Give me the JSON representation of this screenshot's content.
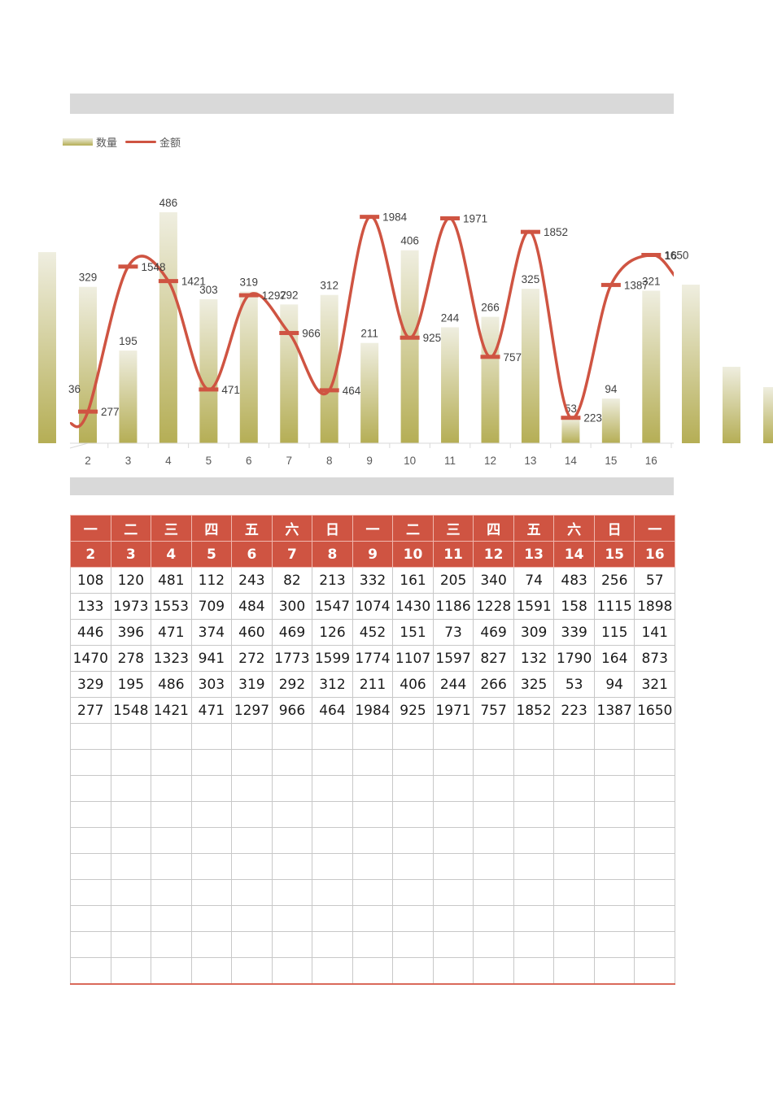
{
  "legend": {
    "items": [
      {
        "label": "数量",
        "type": "bar",
        "color": "#b5ae55"
      },
      {
        "label": "金额",
        "type": "line",
        "color": "#cf5442"
      }
    ]
  },
  "chart_data": {
    "type": "bar+line",
    "title": "",
    "categories": [
      "2",
      "3",
      "4",
      "5",
      "6",
      "7",
      "8",
      "9",
      "10",
      "11",
      "12",
      "13",
      "14",
      "15",
      "16"
    ],
    "series": [
      {
        "name": "数量",
        "type": "bar",
        "values": [
          329,
          195,
          486,
          303,
          319,
          292,
          312,
          211,
          406,
          244,
          266,
          325,
          53,
          94,
          321
        ]
      },
      {
        "name": "金额",
        "type": "line",
        "smooth": true,
        "values": [
          277,
          1548,
          1421,
          471,
          1297,
          966,
          464,
          1984,
          925,
          1971,
          757,
          1852,
          223,
          1387,
          1650
        ]
      }
    ],
    "partial_labels_visible": {
      "left_edge": "36",
      "right_edge": "16"
    },
    "xlabel": "",
    "ylabel": "",
    "grid": false,
    "legend_position": "top-left",
    "colors": {
      "bar_top": "#ecebd9",
      "bar_bottom": "#b5ae55",
      "line": "#cf5442",
      "axis": "#d9d9d9",
      "label": "#404040"
    }
  },
  "table": {
    "weekday_row": [
      "一",
      "二",
      "三",
      "四",
      "五",
      "六",
      "日",
      "一",
      "二",
      "三",
      "四",
      "五",
      "六",
      "日",
      "一"
    ],
    "day_row": [
      "2",
      "3",
      "4",
      "5",
      "6",
      "7",
      "8",
      "9",
      "10",
      "11",
      "12",
      "13",
      "14",
      "15",
      "16"
    ],
    "rows": [
      [
        "108",
        "120",
        "481",
        "112",
        "243",
        "82",
        "213",
        "332",
        "161",
        "205",
        "340",
        "74",
        "483",
        "256",
        "57"
      ],
      [
        "133",
        "1973",
        "1553",
        "709",
        "484",
        "300",
        "1547",
        "1074",
        "1430",
        "1186",
        "1228",
        "1591",
        "158",
        "1115",
        "1898"
      ],
      [
        "446",
        "396",
        "471",
        "374",
        "460",
        "469",
        "126",
        "452",
        "151",
        "73",
        "469",
        "309",
        "339",
        "115",
        "141"
      ],
      [
        "1470",
        "278",
        "1323",
        "941",
        "272",
        "1773",
        "1599",
        "1774",
        "1107",
        "1597",
        "827",
        "132",
        "1790",
        "164",
        "873"
      ],
      [
        "329",
        "195",
        "486",
        "303",
        "319",
        "292",
        "312",
        "211",
        "406",
        "244",
        "266",
        "325",
        "53",
        "94",
        "321"
      ],
      [
        "277",
        "1548",
        "1421",
        "471",
        "1297",
        "966",
        "464",
        "1984",
        "925",
        "1971",
        "757",
        "1852",
        "223",
        "1387",
        "1650"
      ]
    ],
    "empty_rows": 10
  }
}
